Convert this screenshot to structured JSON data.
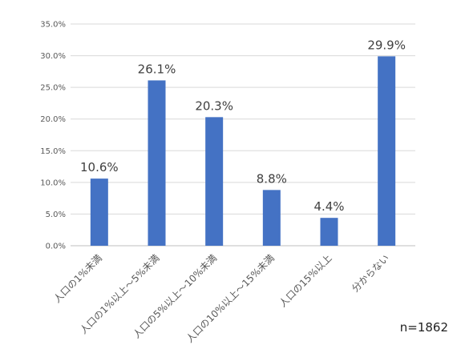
{
  "chart_data": {
    "type": "bar",
    "categories": [
      "人口の1%未満",
      "人口の1%以上～5%未満",
      "人口の5%以上～10%未満",
      "人口の10%以上～15%未満",
      "人口の15%以上",
      "分からない"
    ],
    "values": [
      10.6,
      26.1,
      20.3,
      8.8,
      4.4,
      29.9
    ],
    "data_labels": [
      "10.6%",
      "26.1%",
      "20.3%",
      "8.8%",
      "4.4%",
      "29.9%"
    ],
    "y_ticks": [
      "0.0%",
      "5.0%",
      "10.0%",
      "15.0%",
      "20.0%",
      "25.0%",
      "30.0%",
      "35.0%"
    ],
    "ylim": [
      0,
      35
    ],
    "grid": true,
    "legend": "none",
    "bar_color": "#4472C4",
    "title": "",
    "xlabel": "",
    "ylabel": ""
  },
  "note": "n=1862"
}
